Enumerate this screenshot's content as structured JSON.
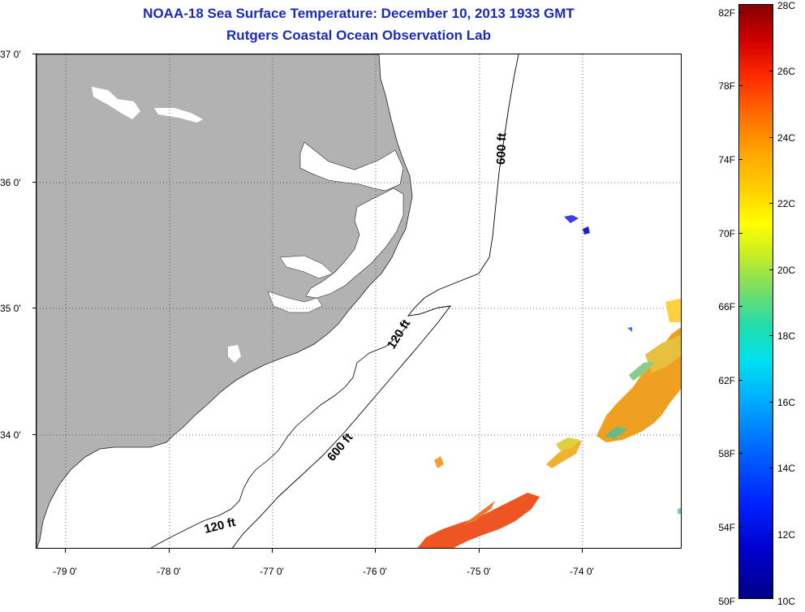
{
  "title_line1": "NOAA-18 Sea Surface Temperature:  December 10, 2013 1933 GMT",
  "title_line2": "Rutgers Coastal Ocean Observation Lab",
  "lat_labels": [
    "37 0'",
    "36 0'",
    "35 0'",
    "34 0'"
  ],
  "lon_labels": [
    "-79 0'",
    "-78 0'",
    "-77 0'",
    "-76 0'",
    "-75 0'",
    "-74 0'"
  ],
  "contour_labels": {
    "c600_north": "600 ft",
    "c120_mid": "120 ft",
    "c600_south": "600 ft",
    "c120_south": "120 ft"
  },
  "colorbar": {
    "fahrenheit": [
      "82F",
      "78F",
      "74F",
      "70F",
      "66F",
      "62F",
      "58F",
      "54F",
      "50F"
    ],
    "celsius": [
      "28C",
      "26C",
      "24C",
      "22C",
      "20C",
      "18C",
      "16C",
      "14C",
      "12C",
      "10C"
    ],
    "colors": [
      "#000088",
      "#0022ff",
      "#00aaff",
      "#22ddaa",
      "#c8ee22",
      "#ffff00",
      "#ffa500",
      "#ff2a00",
      "#880000"
    ]
  },
  "colors": {
    "title": "#1c2ab8",
    "land": "#b2b2b2",
    "water": "#ffffff"
  }
}
